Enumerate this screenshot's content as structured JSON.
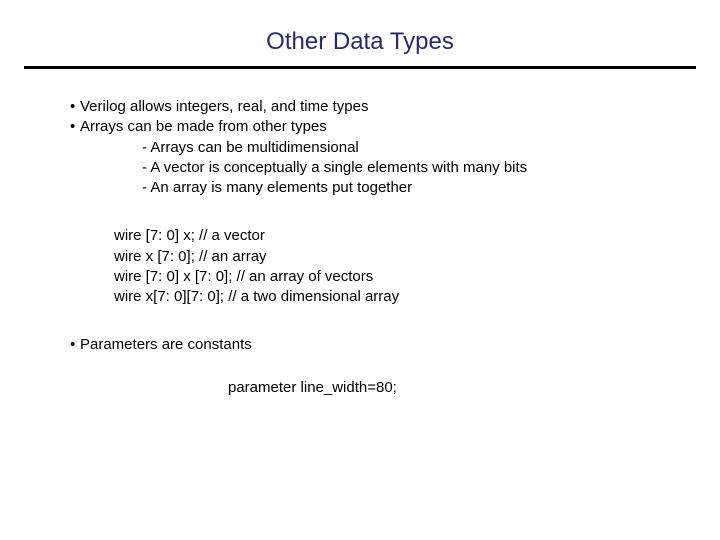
{
  "title": {
    "text": "Other Data Types",
    "color": "#2a2a6a",
    "fontsize": 24
  },
  "divider": {
    "color": "#000000",
    "thickness": 3
  },
  "body": {
    "text_color": "#000000",
    "fontsize": 15,
    "bullets": [
      "Verilog allows integers, real, and time types",
      "Arrays can be made from other types"
    ],
    "subbullets": [
      "- Arrays can be multidimensional",
      "- A vector is conceptually a single elements with many bits",
      "- An array is many elements put together"
    ],
    "code_lines": [
      "wire [7: 0] x; // a vector",
      "wire x [7: 0]; // an array",
      "wire [7: 0] x [7: 0]; // an array of vectors",
      "wire x[7: 0][7: 0]; // a two dimensional array"
    ],
    "bullet2": "Parameters are constants",
    "param_line": "parameter line_width=80;"
  },
  "background_color": "#ffffff"
}
